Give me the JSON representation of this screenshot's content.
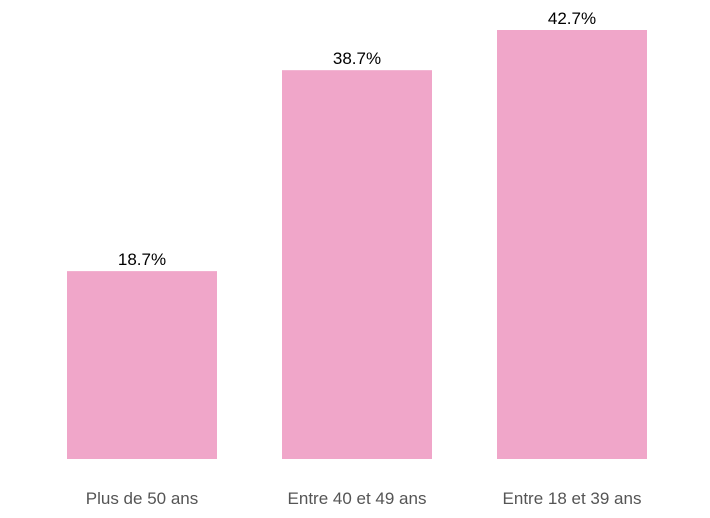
{
  "chart_data": {
    "type": "bar",
    "categories": [
      "Plus de 50 ans",
      "Entre 40 et 49 ans",
      "Entre 18 et 39 ans"
    ],
    "values": [
      18.7,
      38.7,
      42.7
    ],
    "value_labels": [
      "18.7%",
      "38.7%",
      "42.7%"
    ],
    "title": "",
    "xlabel": "",
    "ylabel": "",
    "ylim": [
      0,
      42.7
    ],
    "grid": false,
    "bar_color": "#f0a6c9"
  }
}
